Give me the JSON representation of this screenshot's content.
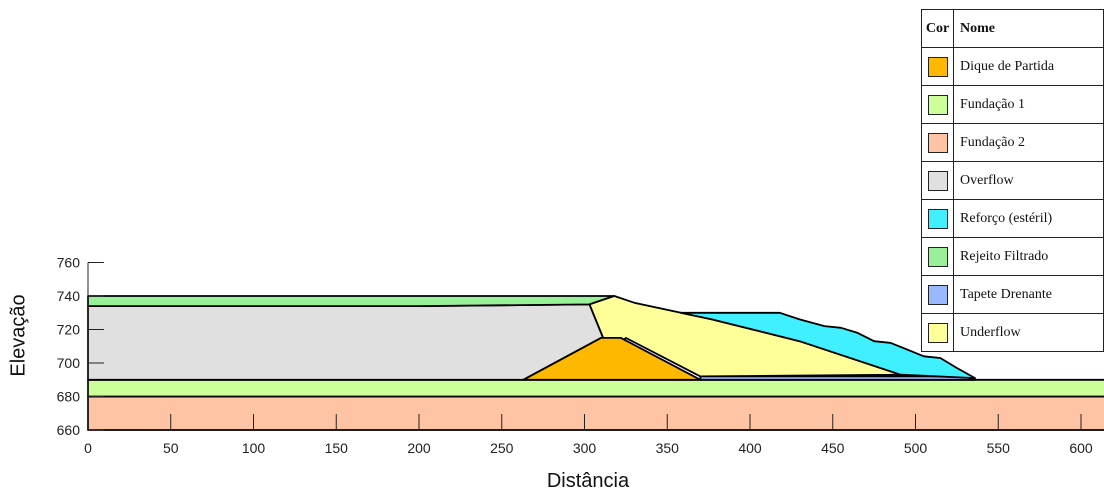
{
  "legend": {
    "header_color": "Cor",
    "header_name": "Nome",
    "items": [
      {
        "name": "Dique de Partida",
        "color": "#FFB800"
      },
      {
        "name": "Fundação 1",
        "color": "#CCFF99"
      },
      {
        "name": "Fundação 2",
        "color": "#FFC4A4"
      },
      {
        "name": "Overflow",
        "color": "#E0E0E0"
      },
      {
        "name": "Reforço (estéril)",
        "color": "#40F0FF"
      },
      {
        "name": "Rejeito Filtrado",
        "color": "#99F099"
      },
      {
        "name": "Tapete Drenante",
        "color": "#99B8FF"
      },
      {
        "name": "Underflow",
        "color": "#FFFF99"
      }
    ]
  },
  "axes": {
    "xlabel": "Distância",
    "ylabel": "Elevação",
    "x_ticks": [
      0,
      50,
      100,
      150,
      200,
      250,
      300,
      350,
      400,
      450,
      500,
      550,
      600
    ],
    "y_ticks": [
      660,
      680,
      700,
      720,
      740,
      760
    ],
    "xlim": [
      0,
      615
    ],
    "ylim": [
      660,
      760
    ]
  },
  "regions": [
    {
      "name": "Fundação 2",
      "color": "#FFC4A4",
      "points": [
        [
          0,
          660
        ],
        [
          615,
          660
        ],
        [
          615,
          680
        ],
        [
          0,
          680
        ]
      ]
    },
    {
      "name": "Fundação 1",
      "color": "#CCFF99",
      "points": [
        [
          0,
          680
        ],
        [
          615,
          680
        ],
        [
          615,
          690
        ],
        [
          0,
          690
        ]
      ]
    },
    {
      "name": "Overflow",
      "color": "#E0E0E0",
      "points": [
        [
          0,
          690
        ],
        [
          263,
          690
        ],
        [
          310,
          715
        ],
        [
          315,
          706
        ],
        [
          303,
          735
        ],
        [
          200,
          734
        ],
        [
          0,
          734
        ]
      ]
    },
    {
      "name": "Rejeito Filtrado",
      "color": "#99F099",
      "points": [
        [
          0,
          734
        ],
        [
          200,
          734
        ],
        [
          303,
          735
        ],
        [
          318,
          740
        ],
        [
          0,
          740
        ]
      ]
    },
    {
      "name": "Underflow",
      "color": "#FFFF99",
      "points": [
        [
          303,
          735
        ],
        [
          318,
          740
        ],
        [
          330,
          736
        ],
        [
          377,
          726
        ],
        [
          430,
          713
        ],
        [
          491,
          693
        ],
        [
          370,
          692
        ],
        [
          325,
          715
        ],
        [
          315,
          706
        ]
      ]
    },
    {
      "name": "Dique de Partida",
      "color": "#FFB800",
      "points": [
        [
          263,
          690
        ],
        [
          370,
          690
        ],
        [
          322,
          715
        ],
        [
          310,
          715
        ]
      ]
    },
    {
      "name": "Tapete Drenante",
      "color": "#99B8FF",
      "points": [
        [
          370,
          690
        ],
        [
          536,
          690
        ],
        [
          530,
          692
        ],
        [
          370,
          692
        ]
      ]
    },
    {
      "name": "Reforço (estéril)",
      "color": "#40F0FF",
      "points": [
        [
          358,
          730
        ],
        [
          418,
          730
        ],
        [
          430,
          726
        ],
        [
          445,
          722
        ],
        [
          455,
          721
        ],
        [
          465,
          718
        ],
        [
          475,
          713
        ],
        [
          485,
          712
        ],
        [
          495,
          708
        ],
        [
          505,
          704
        ],
        [
          515,
          703
        ],
        [
          525,
          697
        ],
        [
          536,
          691
        ],
        [
          491,
          693
        ],
        [
          430,
          713
        ],
        [
          377,
          726
        ]
      ]
    }
  ]
}
